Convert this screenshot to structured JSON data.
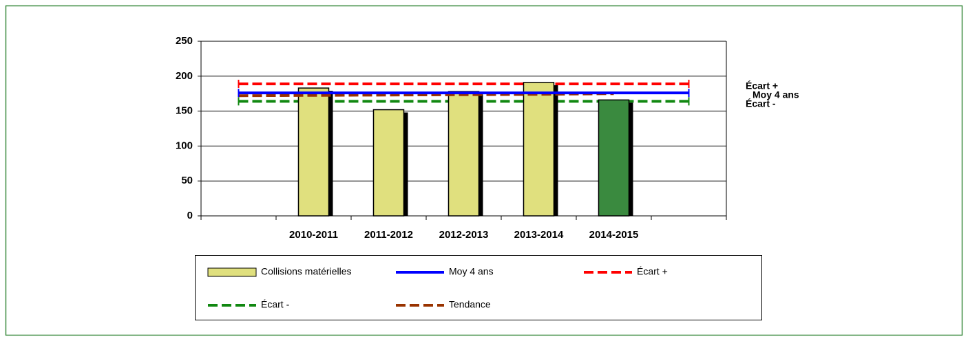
{
  "chart_data": {
    "type": "bar",
    "categories": [
      null,
      "2010-2011",
      "2011-2012",
      "2012-2013",
      "2013-2014",
      "2014-2015",
      null
    ],
    "series": [
      {
        "name": "Collisions matérielles",
        "type": "bar",
        "color": "#e0e07e",
        "colors": [
          null,
          "#e0e07e",
          "#e0e07e",
          "#e0e07e",
          "#e0e07e",
          "#3a8a3f",
          null
        ],
        "values": [
          null,
          183,
          152,
          178,
          191,
          166,
          null
        ]
      },
      {
        "name": "Moy 4 ans",
        "type": "line",
        "color": "#0000ff",
        "dashed": false,
        "values": [
          176,
          176,
          176,
          176,
          176,
          176,
          176
        ]
      },
      {
        "name": "Écart +",
        "type": "line",
        "color": "#ff0000",
        "dashed": true,
        "values": [
          189,
          189,
          189,
          189,
          189,
          189,
          189
        ]
      },
      {
        "name": "Écart -",
        "type": "line",
        "color": "#118811",
        "dashed": true,
        "values": [
          164,
          164,
          164,
          164,
          164,
          164,
          164
        ]
      },
      {
        "name": "Tendance",
        "type": "line",
        "color": "#993300",
        "dashed": true,
        "values": [
          172,
          172.5,
          173,
          173.5,
          174,
          175,
          null
        ]
      }
    ],
    "end_labels": [
      "Écart +",
      "Moy 4 ans",
      "Écart -"
    ],
    "ylim": [
      0,
      250
    ],
    "yticks": [
      0,
      50,
      100,
      150,
      200,
      250
    ],
    "grid": true
  }
}
